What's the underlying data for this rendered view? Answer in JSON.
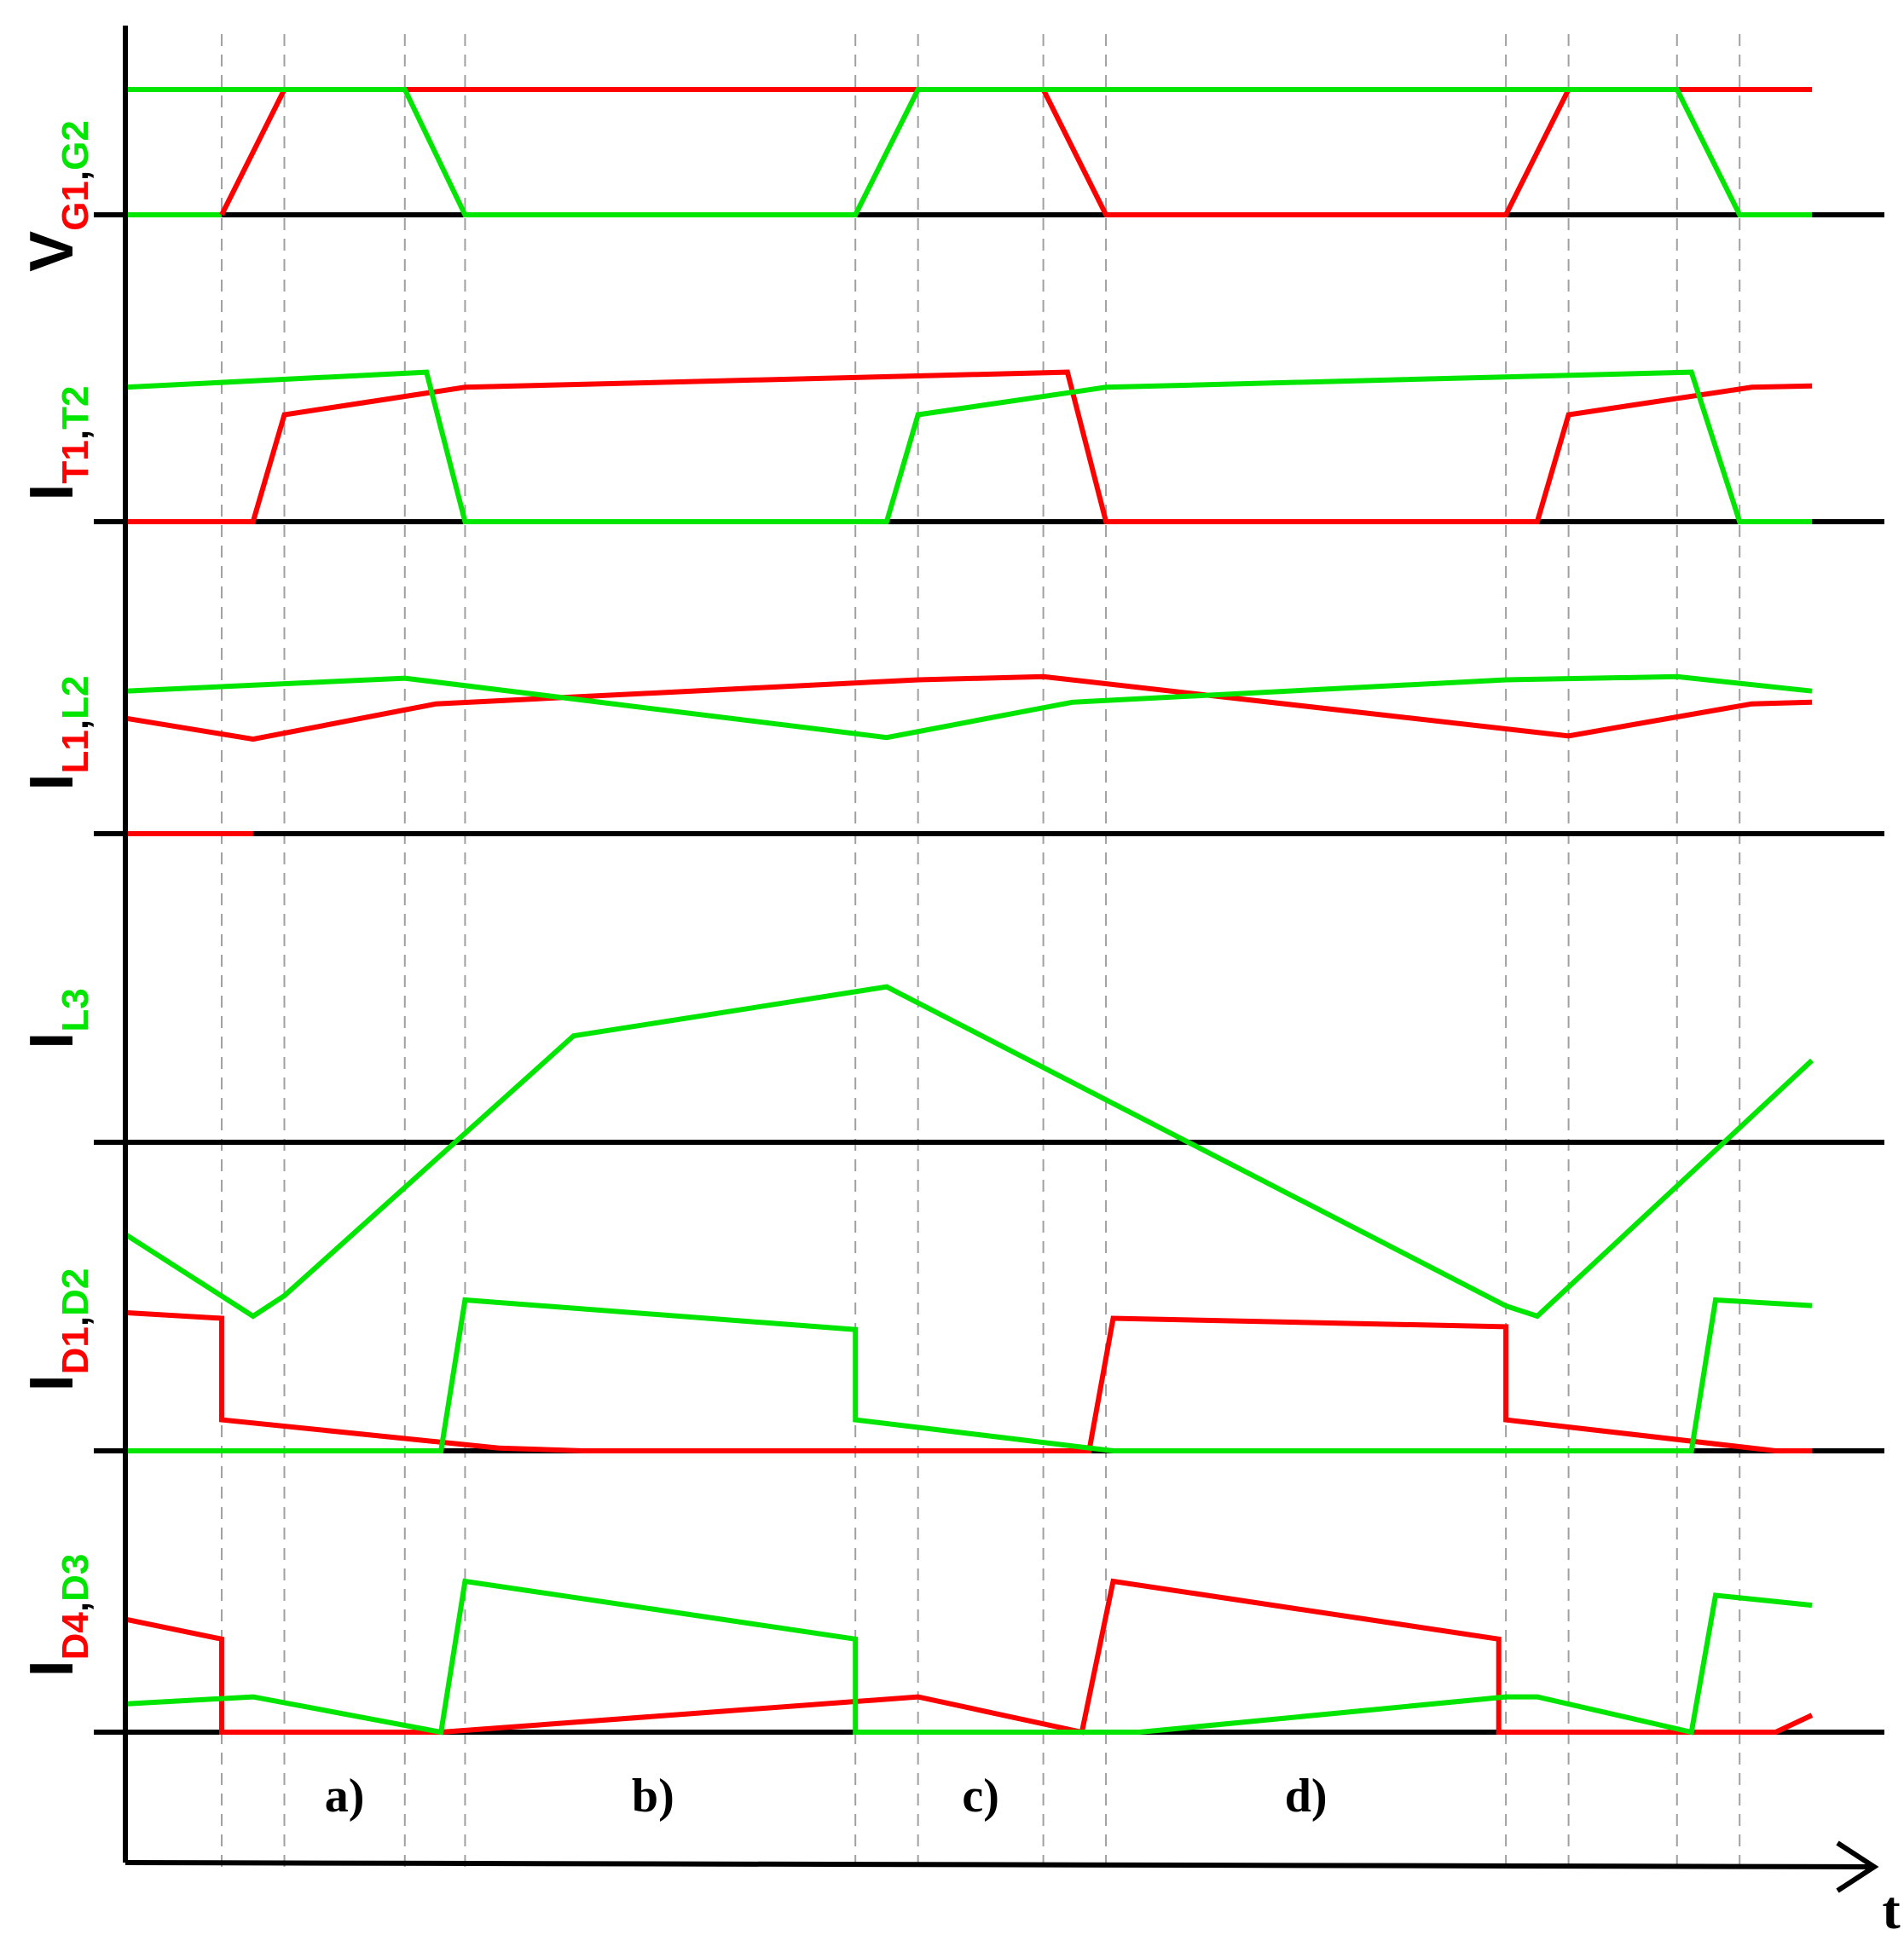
{
  "colors": {
    "red": "#ff0000",
    "green": "#00e600",
    "axis": "#000000",
    "guide": "#a0a0a0"
  },
  "chart_data": {
    "type": "line",
    "x_axis_label": "t",
    "x_range": [
      0,
      1400
    ],
    "time_markers": [
      80,
      132,
      232,
      282,
      606,
      658,
      762,
      814,
      1146,
      1198,
      1288,
      1340
    ],
    "segment_labels": [
      {
        "text": "a)",
        "x": 182
      },
      {
        "text": "b)",
        "x": 438
      },
      {
        "text": "c)",
        "x": 710
      },
      {
        "text": "d)",
        "x": 980
      }
    ],
    "panels": [
      {
        "label_main": "V",
        "label_red": "G1",
        "label_sep": ",",
        "label_green": "G2",
        "y_range": [
          0,
          1
        ],
        "red_points": [
          [
            80,
            0
          ],
          [
            132,
            1
          ],
          [
            1400,
            1
          ]
        ],
        "red_points_2": [
          [
            762,
            1
          ],
          [
            814,
            0
          ],
          [
            1146,
            0
          ],
          [
            1198,
            1
          ],
          [
            1400,
            1
          ]
        ],
        "green_points": [
          [
            0,
            1
          ],
          [
            232,
            1
          ],
          [
            282,
            0
          ],
          [
            606,
            0
          ],
          [
            658,
            1
          ],
          [
            1288,
            1
          ],
          [
            1340,
            0
          ],
          [
            1400,
            0
          ]
        ],
        "green_points_2": [
          [
            0,
            0
          ],
          [
            80,
            0
          ]
        ]
      },
      {
        "label_main": "I",
        "label_red": "T1",
        "label_sep": ",",
        "label_green": "T2",
        "y_range": [
          0,
          1.1
        ],
        "red_points": [
          [
            0,
            0
          ],
          [
            106,
            0
          ],
          [
            132,
            0.78
          ],
          [
            282,
            0.98
          ],
          [
            782,
            1.09
          ],
          [
            814,
            0
          ],
          [
            1172,
            0
          ],
          [
            1198,
            0.78
          ],
          [
            1350,
            0.98
          ],
          [
            1400,
            0.99
          ]
        ],
        "green_points": [
          [
            0,
            0.98
          ],
          [
            250,
            1.09
          ],
          [
            282,
            0
          ],
          [
            632,
            0
          ],
          [
            658,
            0.78
          ],
          [
            814,
            0.98
          ],
          [
            1300,
            1.09
          ],
          [
            1340,
            0
          ],
          [
            1400,
            0
          ]
        ]
      },
      {
        "label_main": "I",
        "label_red": "L1",
        "label_sep": ",",
        "label_green": "L2",
        "y_range": [
          0,
          1
        ],
        "red_points": [
          [
            0,
            0.72
          ],
          [
            106,
            0.59
          ],
          [
            258,
            0.81
          ],
          [
            658,
            0.96
          ],
          [
            762,
            0.98
          ],
          [
            1198,
            0.61
          ],
          [
            1350,
            0.81
          ],
          [
            1400,
            0.82
          ]
        ],
        "green_points": [
          [
            0,
            0.89
          ],
          [
            232,
            0.97
          ],
          [
            632,
            0.6
          ],
          [
            786,
            0.82
          ],
          [
            1146,
            0.96
          ],
          [
            1288,
            0.98
          ],
          [
            1400,
            0.89
          ]
        ],
        "red_baseline_segment": [
          [
            0,
            0
          ],
          [
            106,
            0
          ]
        ]
      },
      {
        "label_main": "I",
        "label_red": "",
        "label_sep": "",
        "label_green": "L3",
        "y_range": [
          -1,
          1
        ],
        "green_points": [
          [
            0,
            -0.45
          ],
          [
            106,
            -0.85
          ],
          [
            132,
            -0.75
          ],
          [
            372,
            0.52
          ],
          [
            632,
            0.76
          ],
          [
            1146,
            -0.8
          ],
          [
            1172,
            -0.85
          ],
          [
            1400,
            0.4
          ]
        ]
      },
      {
        "label_main": "I",
        "label_red": "D1",
        "label_sep": ",",
        "label_green": "D2",
        "y_range": [
          0,
          1.1
        ],
        "red_points": [
          [
            0,
            0.98
          ],
          [
            80,
            0.94
          ],
          [
            80,
            0.22
          ],
          [
            310,
            0.02
          ],
          [
            380,
            0
          ],
          [
            800,
            0
          ],
          [
            820,
            0.94
          ],
          [
            1146,
            0.88
          ],
          [
            1146,
            0.22
          ],
          [
            1370,
            0
          ],
          [
            1400,
            0
          ]
        ],
        "green_points": [
          [
            0,
            0
          ],
          [
            262,
            0
          ],
          [
            282,
            1.07
          ],
          [
            606,
            0.86
          ],
          [
            606,
            0.22
          ],
          [
            820,
            0
          ],
          [
            1300,
            0
          ],
          [
            1320,
            1.07
          ],
          [
            1400,
            1.03
          ]
        ]
      },
      {
        "label_main": "I",
        "label_red": "D4",
        "label_sep": ",",
        "label_green": "D3",
        "y_range": [
          0,
          1.1
        ],
        "red_points": [
          [
            0,
            0.8
          ],
          [
            80,
            0.66
          ],
          [
            80,
            0
          ],
          [
            262,
            0
          ],
          [
            658,
            0.25
          ],
          [
            794,
            0
          ],
          [
            820,
            1.07
          ],
          [
            1140,
            0.66
          ],
          [
            1140,
            0
          ],
          [
            1370,
            0
          ],
          [
            1400,
            0.12
          ]
        ],
        "green_points": [
          [
            0,
            0.2
          ],
          [
            106,
            0.25
          ],
          [
            262,
            0
          ],
          [
            282,
            1.07
          ],
          [
            606,
            0.66
          ],
          [
            606,
            0
          ],
          [
            842,
            0
          ],
          [
            1146,
            0.25
          ],
          [
            1172,
            0.25
          ],
          [
            1300,
            0
          ],
          [
            1320,
            0.97
          ],
          [
            1400,
            0.9
          ]
        ]
      }
    ]
  }
}
